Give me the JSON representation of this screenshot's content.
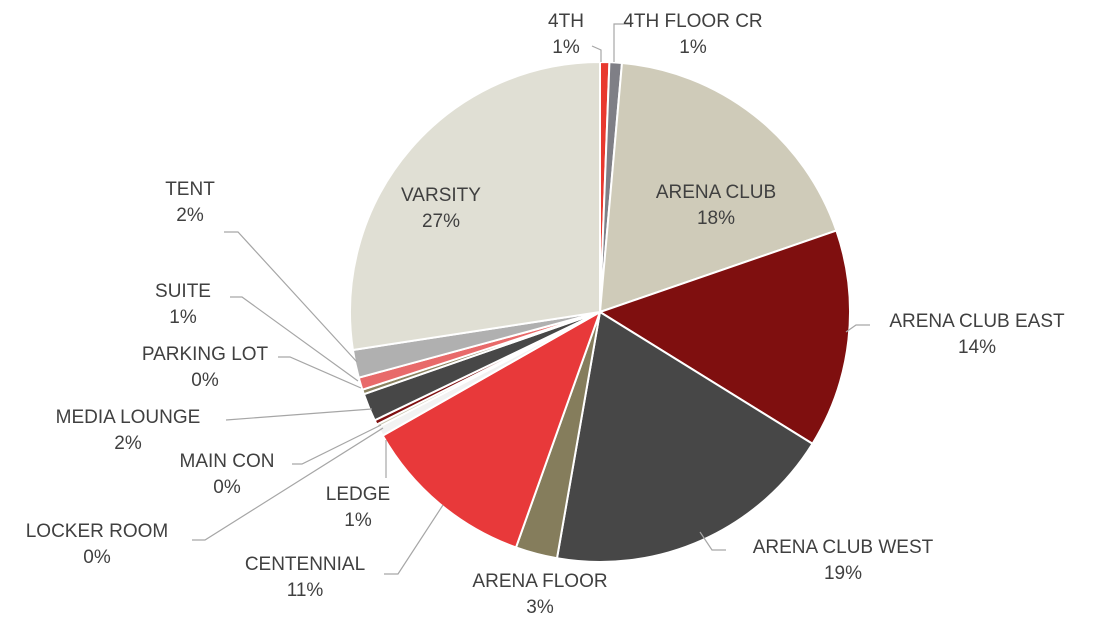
{
  "chart_data": {
    "type": "pie",
    "categories": [
      "4TH",
      "4TH FLOOR CR",
      "ARENA CLUB",
      "ARENA CLUB EAST",
      "ARENA CLUB WEST",
      "ARENA FLOOR",
      "CENTENNIAL",
      "LEDGE",
      "LOCKER ROOM",
      "MAIN CON",
      "MEDIA LOUNGE",
      "PARKING LOT",
      "SUITE",
      "TENT",
      "VARSITY"
    ],
    "values": [
      0.6,
      0.8,
      18.3,
      14.1,
      18.9,
      2.7,
      11.3,
      0.6,
      0.2,
      0.3,
      1.8,
      0.3,
      0.8,
      1.8,
      27.4
    ],
    "value_labels": [
      "1%",
      "1%",
      "18%",
      "14%",
      "19%",
      "3%",
      "11%",
      "1%",
      "0%",
      "0%",
      "2%",
      "0%",
      "1%",
      "2%",
      "27%"
    ],
    "colors": [
      "#e8392f",
      "#7f7f86",
      "#cfcbb9",
      "#7f0f0f",
      "#474747",
      "#857d5c",
      "#e8393a",
      "#f2f2f2",
      "#c9c5b0",
      "#7f1010",
      "#474747",
      "#8b8360",
      "#e86a6a",
      "#b0b0b0",
      "#e0dfd4"
    ]
  }
}
